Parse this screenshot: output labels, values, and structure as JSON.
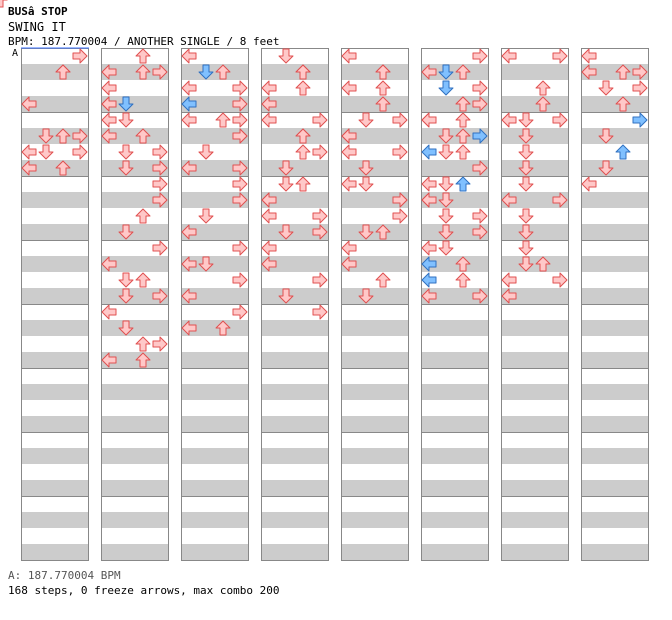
{
  "header": {
    "artist": "BUSâ  STOP",
    "title": "SWING IT",
    "info": "BPM: 187.770004 / ANOTHER SINGLE / 8 feet",
    "bpm_marker": "A"
  },
  "footer": {
    "bpm_line": "A: 187.770004 BPM",
    "steps_line": "168 steps, 0 freeze arrows, max combo 200"
  },
  "colors": {
    "band": "#cccccc",
    "border": "#888888",
    "arrow_fill": "#ffc8c8",
    "arrow_stroke": "#e05050",
    "blue_fill": "#80c0ff",
    "blue_stroke": "#3070c0",
    "bpm_line": "#3a70ff"
  },
  "chart_data": {
    "type": "step-chart",
    "columns": 8,
    "measures_per_column": 8,
    "rows_per_measure": 8,
    "arrows": [
      [
        0,
        0,
        3,
        "r"
      ],
      [
        0,
        1,
        2,
        "r"
      ],
      [
        0,
        1,
        2,
        "r"
      ],
      [
        0,
        2,
        4,
        "r"
      ],
      [
        0,
        3,
        0,
        "r"
      ],
      [
        0,
        3,
        4,
        "r"
      ],
      [
        0,
        4,
        5,
        "r"
      ],
      [
        0,
        5,
        1,
        "r"
      ],
      [
        0,
        5,
        2,
        "r"
      ],
      [
        0,
        5,
        3,
        "r"
      ],
      [
        0,
        5,
        5,
        "r"
      ],
      [
        0,
        6,
        0,
        "r"
      ],
      [
        0,
        6,
        1,
        "r"
      ],
      [
        0,
        6,
        3,
        "r"
      ],
      [
        0,
        6,
        4,
        "r"
      ],
      [
        0,
        7,
        0,
        "r"
      ],
      [
        0,
        7,
        2,
        "r"
      ],
      [
        0,
        7,
        4,
        "r"
      ],
      [
        1,
        0,
        2,
        "r"
      ],
      [
        1,
        1,
        0,
        "r"
      ],
      [
        1,
        1,
        3,
        "r"
      ],
      [
        1,
        1,
        2,
        "r"
      ],
      [
        1,
        2,
        0,
        "r"
      ],
      [
        1,
        3,
        0,
        "r"
      ],
      [
        1,
        3,
        1,
        "b"
      ],
      [
        1,
        3,
        0,
        "r"
      ],
      [
        1,
        4,
        0,
        "r"
      ],
      [
        1,
        4,
        1,
        "r"
      ],
      [
        1,
        5,
        0,
        "r"
      ],
      [
        1,
        5,
        2,
        "r"
      ],
      [
        1,
        6,
        1,
        "r"
      ],
      [
        1,
        6,
        3,
        "r"
      ],
      [
        1,
        7,
        1,
        "r"
      ],
      [
        1,
        7,
        3,
        "r"
      ],
      [
        1,
        8,
        3,
        "r"
      ],
      [
        1,
        9,
        3,
        "r"
      ],
      [
        1,
        10,
        2,
        "r"
      ],
      [
        1,
        11,
        1,
        "r"
      ],
      [
        1,
        12,
        3,
        "r"
      ],
      [
        1,
        13,
        0,
        "r"
      ],
      [
        1,
        14,
        1,
        "r"
      ],
      [
        1,
        14,
        2,
        "r"
      ],
      [
        1,
        15,
        1,
        "r"
      ],
      [
        1,
        15,
        3,
        "r"
      ],
      [
        1,
        16,
        0,
        "r"
      ],
      [
        1,
        17,
        1,
        "r"
      ],
      [
        1,
        18,
        2,
        "r"
      ],
      [
        1,
        18,
        3,
        "r"
      ],
      [
        1,
        19,
        0,
        "r"
      ],
      [
        1,
        19,
        2,
        "r"
      ],
      [
        2,
        0,
        0,
        "r"
      ],
      [
        2,
        1,
        1,
        "b"
      ],
      [
        2,
        1,
        2,
        "r"
      ],
      [
        2,
        2,
        0,
        "r"
      ],
      [
        2,
        2,
        3,
        "r"
      ],
      [
        2,
        3,
        0,
        "b"
      ],
      [
        2,
        3,
        3,
        "r"
      ],
      [
        2,
        4,
        0,
        "r"
      ],
      [
        2,
        4,
        2,
        "r"
      ],
      [
        2,
        4,
        3,
        "r"
      ],
      [
        2,
        5,
        3,
        "r"
      ],
      [
        2,
        5,
        3,
        "r"
      ],
      [
        2,
        6,
        1,
        "r"
      ],
      [
        2,
        6,
        1,
        "r"
      ],
      [
        2,
        7,
        0,
        "r"
      ],
      [
        2,
        7,
        3,
        "r"
      ],
      [
        2,
        8,
        3,
        "r"
      ],
      [
        2,
        9,
        3,
        "r"
      ],
      [
        2,
        10,
        1,
        "r"
      ],
      [
        2,
        11,
        0,
        "r"
      ],
      [
        2,
        12,
        3,
        "r"
      ],
      [
        2,
        13,
        0,
        "r"
      ],
      [
        2,
        13,
        1,
        "r"
      ],
      [
        2,
        14,
        3,
        "r"
      ],
      [
        2,
        15,
        0,
        "r"
      ],
      [
        2,
        16,
        3,
        "r"
      ],
      [
        2,
        17,
        0,
        "r"
      ],
      [
        2,
        17,
        2,
        "r"
      ],
      [
        3,
        0,
        1,
        "r"
      ],
      [
        3,
        1,
        2,
        "r"
      ],
      [
        3,
        1,
        2,
        "r"
      ],
      [
        3,
        2,
        2,
        "r"
      ],
      [
        3,
        2,
        0,
        "r"
      ],
      [
        3,
        3,
        0,
        "r"
      ],
      [
        3,
        4,
        0,
        "r"
      ],
      [
        3,
        4,
        3,
        "r"
      ],
      [
        3,
        5,
        2,
        "r"
      ],
      [
        3,
        5,
        2,
        "r"
      ],
      [
        3,
        6,
        2,
        "r"
      ],
      [
        3,
        6,
        3,
        "r"
      ],
      [
        3,
        7,
        1,
        "r"
      ],
      [
        3,
        8,
        1,
        "r"
      ],
      [
        3,
        8,
        2,
        "r"
      ],
      [
        3,
        9,
        0,
        "r"
      ],
      [
        3,
        9,
        0,
        "r"
      ],
      [
        3,
        10,
        0,
        "r"
      ],
      [
        3,
        10,
        3,
        "r"
      ],
      [
        3,
        11,
        1,
        "r"
      ],
      [
        3,
        11,
        3,
        "r"
      ],
      [
        3,
        12,
        0,
        "r"
      ],
      [
        3,
        13,
        0,
        "r"
      ],
      [
        3,
        14,
        3,
        "r"
      ],
      [
        3,
        15,
        1,
        "r"
      ],
      [
        3,
        16,
        3,
        "r"
      ],
      [
        4,
        0,
        0,
        "r"
      ],
      [
        4,
        1,
        2,
        "r"
      ],
      [
        4,
        1,
        2,
        "r"
      ],
      [
        4,
        2,
        2,
        "r"
      ],
      [
        4,
        2,
        0,
        "r"
      ],
      [
        4,
        3,
        2,
        "r"
      ],
      [
        4,
        4,
        1,
        "r"
      ],
      [
        4,
        4,
        3,
        "r"
      ],
      [
        4,
        5,
        0,
        "r"
      ],
      [
        4,
        5,
        0,
        "r"
      ],
      [
        4,
        6,
        0,
        "r"
      ],
      [
        4,
        6,
        3,
        "r"
      ],
      [
        4,
        7,
        1,
        "r"
      ],
      [
        4,
        8,
        0,
        "r"
      ],
      [
        4,
        8,
        1,
        "r"
      ],
      [
        4,
        9,
        3,
        "r"
      ],
      [
        4,
        9,
        3,
        "r"
      ],
      [
        4,
        10,
        3,
        "r"
      ],
      [
        4,
        11,
        2,
        "r"
      ],
      [
        4,
        11,
        1,
        "r"
      ],
      [
        4,
        12,
        0,
        "r"
      ],
      [
        4,
        13,
        0,
        "r"
      ],
      [
        4,
        14,
        2,
        "r"
      ],
      [
        4,
        15,
        1,
        "r"
      ],
      [
        5,
        0,
        3,
        "r"
      ],
      [
        5,
        1,
        2,
        "r"
      ],
      [
        5,
        1,
        1,
        "b"
      ],
      [
        5,
        1,
        0,
        "r"
      ],
      [
        5,
        2,
        1,
        "b"
      ],
      [
        5,
        2,
        3,
        "r"
      ],
      [
        5,
        3,
        2,
        "r"
      ],
      [
        5,
        3,
        3,
        "r"
      ],
      [
        5,
        3,
        2,
        "r"
      ],
      [
        5,
        4,
        0,
        "r"
      ],
      [
        5,
        4,
        2,
        "r"
      ],
      [
        5,
        4,
        0,
        "r"
      ],
      [
        5,
        5,
        2,
        "r"
      ],
      [
        5,
        5,
        3,
        "b"
      ],
      [
        5,
        5,
        1,
        "r"
      ],
      [
        5,
        6,
        0,
        "b"
      ],
      [
        5,
        6,
        1,
        "r"
      ],
      [
        5,
        6,
        2,
        "r"
      ],
      [
        5,
        7,
        3,
        "r"
      ],
      [
        5,
        8,
        1,
        "r"
      ],
      [
        5,
        8,
        2,
        "b"
      ],
      [
        5,
        8,
        0,
        "r"
      ],
      [
        5,
        9,
        0,
        "r"
      ],
      [
        5,
        9,
        1,
        "r"
      ],
      [
        5,
        9,
        0,
        "r"
      ],
      [
        5,
        10,
        1,
        "r"
      ],
      [
        5,
        10,
        3,
        "r"
      ],
      [
        5,
        11,
        1,
        "r"
      ],
      [
        5,
        11,
        3,
        "r"
      ],
      [
        5,
        12,
        1,
        "r"
      ],
      [
        5,
        12,
        0,
        "r"
      ],
      [
        5,
        13,
        2,
        "r"
      ],
      [
        5,
        13,
        0,
        "b"
      ],
      [
        5,
        14,
        0,
        "b"
      ],
      [
        5,
        14,
        2,
        "r"
      ],
      [
        5,
        15,
        0,
        "r"
      ],
      [
        5,
        15,
        3,
        "r"
      ],
      [
        6,
        0,
        0,
        "r"
      ],
      [
        6,
        0,
        3,
        "r"
      ],
      [
        6,
        2,
        2,
        "r"
      ],
      [
        6,
        3,
        2,
        "r"
      ],
      [
        6,
        4,
        0,
        "r"
      ],
      [
        6,
        4,
        1,
        "r"
      ],
      [
        6,
        4,
        3,
        "r"
      ],
      [
        6,
        5,
        1,
        "r"
      ],
      [
        6,
        6,
        1,
        "r"
      ],
      [
        6,
        7,
        1,
        "r"
      ],
      [
        6,
        8,
        1,
        "r"
      ],
      [
        6,
        9,
        3,
        "r"
      ],
      [
        6,
        9,
        0,
        "r"
      ],
      [
        6,
        10,
        1,
        "r"
      ],
      [
        6,
        11,
        1,
        "r"
      ],
      [
        6,
        12,
        1,
        "r"
      ],
      [
        6,
        13,
        1,
        "r"
      ],
      [
        6,
        13,
        2,
        "r"
      ],
      [
        6,
        14,
        0,
        "r"
      ],
      [
        6,
        14,
        3,
        "r"
      ],
      [
        6,
        15,
        0,
        "r"
      ],
      [
        7,
        0,
        0,
        "r"
      ],
      [
        7,
        1,
        0,
        "r"
      ],
      [
        7,
        1,
        2,
        "r"
      ],
      [
        7,
        1,
        3,
        "r"
      ],
      [
        7,
        2,
        1,
        "r"
      ],
      [
        7,
        2,
        3,
        "r"
      ],
      [
        7,
        3,
        2,
        "r"
      ],
      [
        7,
        4,
        3,
        "b"
      ],
      [
        7,
        5,
        1,
        "r"
      ],
      [
        7,
        6,
        2,
        "b"
      ],
      [
        7,
        7,
        1,
        "r"
      ],
      [
        7,
        8,
        0,
        "r"
      ]
    ]
  }
}
